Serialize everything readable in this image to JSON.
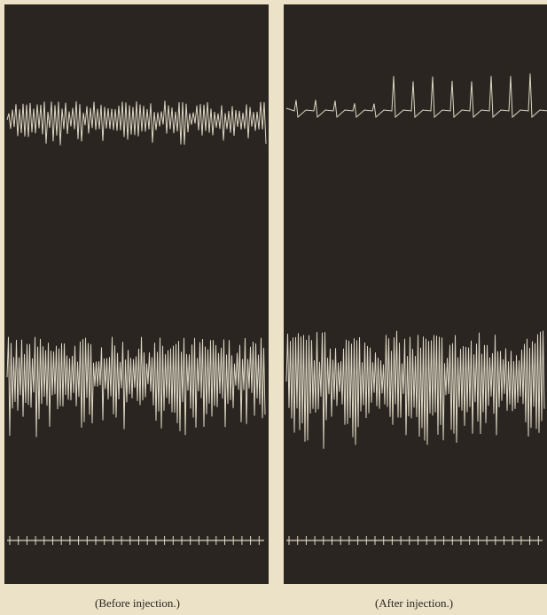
{
  "figure": {
    "panels": [
      {
        "caption": "(Before injection.)"
      },
      {
        "caption": "(After injection.)"
      }
    ]
  }
}
